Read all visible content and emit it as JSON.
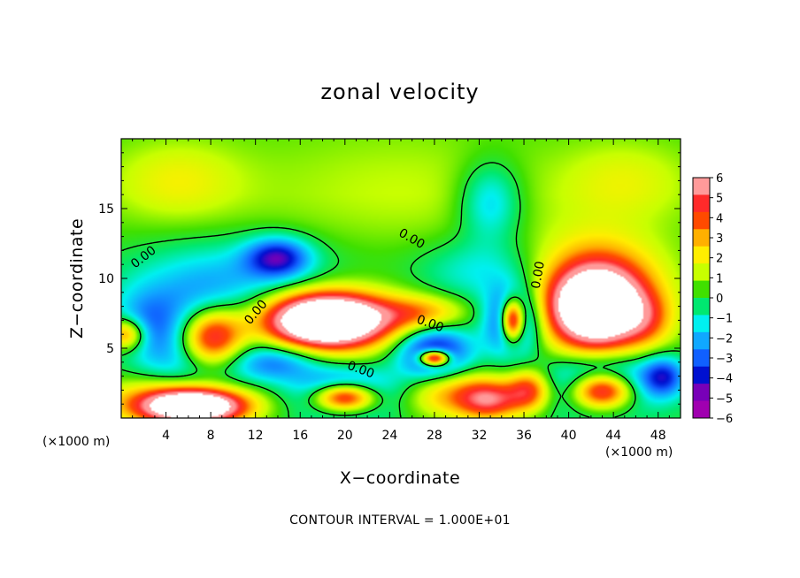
{
  "chart_data": {
    "type": "heatmap",
    "title": "zonal velocity",
    "xlabel": "X−coordinate",
    "ylabel": "Z−coordinate",
    "x_unit_left": "(×1000 m)",
    "x_unit_right": "(×1000 m)",
    "footnote": "CONTOUR INTERVAL = 1.000E+01",
    "xlim": [
      0,
      50
    ],
    "ylim": [
      0,
      20
    ],
    "x_ticks": [
      4,
      8,
      12,
      16,
      20,
      24,
      28,
      32,
      36,
      40,
      44,
      48
    ],
    "y_ticks": [
      5,
      10,
      15
    ],
    "contour_labels": [
      "0.00",
      "0.00",
      "0.00",
      "0.00",
      "0.00",
      "0.00"
    ],
    "colorbar": {
      "levels": [
        6,
        5,
        4,
        3,
        2,
        1,
        0,
        -1,
        -2,
        -3,
        -4,
        -5,
        -6
      ],
      "colors": [
        "#ff9a9a",
        "#ff2a2a",
        "#ff4a00",
        "#ffb000",
        "#ffee00",
        "#c8ff00",
        "#40e000",
        "#00e870",
        "#00f0f0",
        "#10a8ff",
        "#1060ff",
        "#0010d0",
        "#7800b8",
        "#a000b0"
      ],
      "saturation_color": "#ffffff"
    },
    "features": [
      {
        "kind": "blob",
        "x": 25,
        "y": 16.5,
        "rx": 14,
        "ry": 5,
        "value": 0.8
      },
      {
        "kind": "blob",
        "x": 5,
        "y": 17,
        "rx": 6,
        "ry": 3,
        "value": 1.5
      },
      {
        "kind": "blob",
        "x": 45,
        "y": 17,
        "rx": 6,
        "ry": 3,
        "value": 1.3
      },
      {
        "kind": "blob",
        "x": 33,
        "y": 15.5,
        "rx": 3,
        "ry": 3,
        "value": -2.6
      },
      {
        "kind": "blob",
        "x": 10,
        "y": 10,
        "rx": 10,
        "ry": 3,
        "value": -2.2
      },
      {
        "kind": "blob",
        "x": 14,
        "y": 11.5,
        "rx": 3,
        "ry": 1.5,
        "value": -4.2
      },
      {
        "kind": "blob",
        "x": 32,
        "y": 10.5,
        "rx": 6,
        "ry": 2.5,
        "value": -1.8
      },
      {
        "kind": "blob",
        "x": 2,
        "y": 7,
        "rx": 3,
        "ry": 2.5,
        "value": -1.8
      },
      {
        "kind": "blob",
        "x": 7,
        "y": 5.5,
        "rx": 5,
        "ry": 3.5,
        "value": -5
      },
      {
        "kind": "blob",
        "x": 8,
        "y": 5.7,
        "rx": 3.2,
        "ry": 2.3,
        "value": 9
      },
      {
        "kind": "blob",
        "x": 0.5,
        "y": 6,
        "rx": 1.8,
        "ry": 1.2,
        "value": 4.5
      },
      {
        "kind": "blob",
        "x": 18,
        "y": 7,
        "rx": 7.5,
        "ry": 2.5,
        "value": 4.5
      },
      {
        "kind": "blob",
        "x": 18.5,
        "y": 7,
        "rx": 5,
        "ry": 1.8,
        "value": 9
      },
      {
        "kind": "blob",
        "x": 14,
        "y": 4,
        "rx": 4,
        "ry": 1.5,
        "value": -3
      },
      {
        "kind": "blob",
        "x": 27,
        "y": 7.5,
        "rx": 4,
        "ry": 1.3,
        "value": 3
      },
      {
        "kind": "blob",
        "x": 28,
        "y": 4.5,
        "rx": 3.5,
        "ry": 2.2,
        "value": -5.5
      },
      {
        "kind": "blob",
        "x": 28,
        "y": 4.3,
        "rx": 1.4,
        "ry": 0.6,
        "value": 9
      },
      {
        "kind": "blob",
        "x": 35,
        "y": 7,
        "rx": 2.5,
        "ry": 2.5,
        "value": -5.5
      },
      {
        "kind": "blob",
        "x": 35,
        "y": 7,
        "rx": 1.1,
        "ry": 1.6,
        "value": 9
      },
      {
        "kind": "blob",
        "x": 42.5,
        "y": 9,
        "rx": 6,
        "ry": 4,
        "value": 4.5
      },
      {
        "kind": "blob",
        "x": 42.5,
        "y": 7.8,
        "rx": 4,
        "ry": 2.8,
        "value": 9
      },
      {
        "kind": "blob",
        "x": 5,
        "y": 1.2,
        "rx": 7,
        "ry": 1.8,
        "value": 4
      },
      {
        "kind": "blob",
        "x": 6.5,
        "y": 0.8,
        "rx": 4.5,
        "ry": 1.2,
        "value": 9
      },
      {
        "kind": "blob",
        "x": 20,
        "y": 1.8,
        "rx": 4.5,
        "ry": 1.7,
        "value": -5
      },
      {
        "kind": "blob",
        "x": 20,
        "y": 1.5,
        "rx": 3,
        "ry": 1.1,
        "value": 9
      },
      {
        "kind": "blob",
        "x": 29,
        "y": 2,
        "rx": 4,
        "ry": 2,
        "value": 3.5
      },
      {
        "kind": "blob",
        "x": 33,
        "y": 1.3,
        "rx": 3,
        "ry": 1.5,
        "value": 5
      },
      {
        "kind": "blob",
        "x": 36.5,
        "y": 2,
        "rx": 2,
        "ry": 1.5,
        "value": 4.5
      },
      {
        "kind": "blob",
        "x": 43,
        "y": 2.5,
        "rx": 5,
        "ry": 2,
        "value": -5
      },
      {
        "kind": "blob",
        "x": 43,
        "y": 2,
        "rx": 3,
        "ry": 1.4,
        "value": 9
      },
      {
        "kind": "blob",
        "x": 48.5,
        "y": 3,
        "rx": 2,
        "ry": 1.5,
        "value": -3.5
      },
      {
        "kind": "blob",
        "x": 47,
        "y": 7,
        "rx": 2.5,
        "ry": 2,
        "value": 2
      }
    ]
  }
}
